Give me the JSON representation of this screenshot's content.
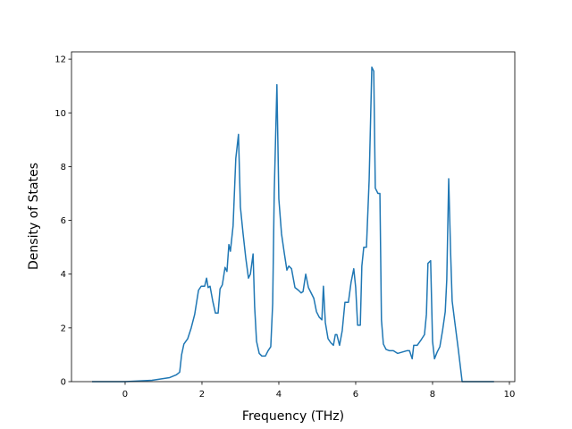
{
  "chart_data": {
    "type": "line",
    "xlabel": "Frequency (THz)",
    "ylabel": "Density of States",
    "xlim": [
      -1.395,
      10.14
    ],
    "ylim": [
      0,
      12.27
    ],
    "xticks": [
      0,
      2,
      4,
      6,
      8,
      10
    ],
    "yticks": [
      0,
      2,
      4,
      6,
      8,
      10,
      12
    ],
    "grid": false,
    "x": [
      -0.86,
      0,
      0.7,
      1.16,
      1.33,
      1.42,
      1.47,
      1.53,
      1.63,
      1.72,
      1.81,
      1.91,
      1.98,
      2.07,
      2.12,
      2.16,
      2.21,
      2.28,
      2.35,
      2.42,
      2.47,
      2.53,
      2.6,
      2.65,
      2.7,
      2.74,
      2.81,
      2.88,
      2.95,
      3.0,
      3.07,
      3.14,
      3.21,
      3.26,
      3.33,
      3.37,
      3.42,
      3.49,
      3.56,
      3.65,
      3.72,
      3.79,
      3.84,
      3.88,
      3.95,
      4.0,
      4.07,
      4.14,
      4.21,
      4.26,
      4.33,
      4.42,
      4.51,
      4.58,
      4.63,
      4.7,
      4.77,
      4.84,
      4.91,
      4.98,
      5.05,
      5.12,
      5.16,
      5.21,
      5.28,
      5.35,
      5.42,
      5.47,
      5.51,
      5.58,
      5.65,
      5.72,
      5.81,
      5.88,
      5.95,
      6.0,
      6.05,
      6.12,
      6.16,
      6.21,
      6.28,
      6.35,
      6.42,
      6.47,
      6.51,
      6.58,
      6.63,
      6.67,
      6.72,
      6.79,
      6.88,
      6.98,
      7.09,
      7.21,
      7.33,
      7.4,
      7.47,
      7.51,
      7.6,
      7.7,
      7.79,
      7.84,
      7.88,
      7.95,
      8.0,
      8.05,
      8.12,
      8.19,
      8.26,
      8.33,
      8.37,
      8.42,
      8.47,
      8.51,
      8.58,
      8.67,
      8.77,
      9.6
    ],
    "series": [
      {
        "name": "DOS",
        "color": "#1f77b4",
        "values": [
          0,
          0,
          0.05,
          0.15,
          0.25,
          0.35,
          1.0,
          1.4,
          1.6,
          2.0,
          2.5,
          3.4,
          3.55,
          3.55,
          3.85,
          3.5,
          3.55,
          3.0,
          2.55,
          2.55,
          3.45,
          3.6,
          4.25,
          4.1,
          5.1,
          4.85,
          5.8,
          8.3,
          9.2,
          6.5,
          5.5,
          4.6,
          3.85,
          4.0,
          4.75,
          2.8,
          1.5,
          1.05,
          0.95,
          0.95,
          1.15,
          1.3,
          2.9,
          7.0,
          11.05,
          6.8,
          5.5,
          4.8,
          4.15,
          4.3,
          4.2,
          3.5,
          3.4,
          3.3,
          3.35,
          4.0,
          3.5,
          3.3,
          3.1,
          2.6,
          2.4,
          2.3,
          3.55,
          2.2,
          1.6,
          1.45,
          1.35,
          1.75,
          1.75,
          1.35,
          1.9,
          2.95,
          2.95,
          3.7,
          4.2,
          3.5,
          2.1,
          2.1,
          4.3,
          5.0,
          5.0,
          7.5,
          11.7,
          11.55,
          7.2,
          7.0,
          7.0,
          2.3,
          1.4,
          1.2,
          1.15,
          1.15,
          1.05,
          1.1,
          1.15,
          1.15,
          0.85,
          1.35,
          1.35,
          1.55,
          1.75,
          2.5,
          4.4,
          4.5,
          1.5,
          0.85,
          1.1,
          1.3,
          1.9,
          2.6,
          3.8,
          7.55,
          4.8,
          3.0,
          2.2,
          1.2,
          0,
          0
        ]
      }
    ]
  }
}
